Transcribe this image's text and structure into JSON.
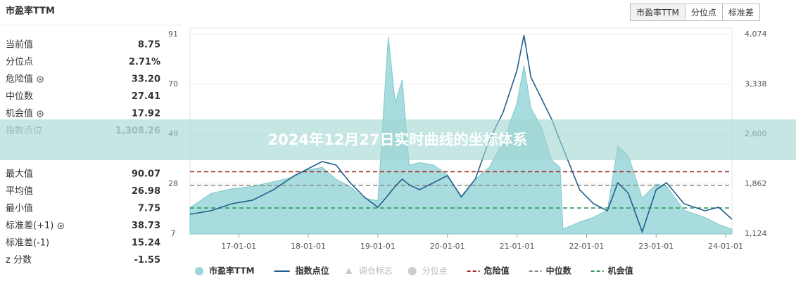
{
  "panel_title": "市盈率TTM",
  "tabs": [
    {
      "label": "市盈率TTM",
      "active": true
    },
    {
      "label": "分位点",
      "active": false
    },
    {
      "label": "标准差",
      "active": false
    }
  ],
  "stats": [
    [
      {
        "label": "当前值",
        "value": "8.75",
        "gear": false
      },
      {
        "label": "分位点",
        "value": "2.71%",
        "gear": false
      },
      {
        "label": "危险值",
        "value": "33.20",
        "gear": true
      },
      {
        "label": "中位数",
        "value": "27.41",
        "gear": false
      },
      {
        "label": "机会值",
        "value": "17.92",
        "gear": true
      },
      {
        "label": "指数点位",
        "value": "1,308.26",
        "gear": false
      }
    ],
    [
      {
        "label": "最大值",
        "value": "90.07",
        "gear": false
      },
      {
        "label": "平均值",
        "value": "26.98",
        "gear": false
      },
      {
        "label": "最小值",
        "value": "7.75",
        "gear": false
      },
      {
        "label": "标准差(+1)",
        "value": "38.73",
        "gear": true
      },
      {
        "label": "标准差(-1)",
        "value": "15.24",
        "gear": false
      },
      {
        "label": "z 分数",
        "value": "-1.55",
        "gear": false
      }
    ]
  ],
  "banner": "2024年12月27日实时曲线的坐标体系",
  "chart_data": {
    "type": "area-line",
    "x": [
      2016.3,
      2016.6,
      2016.9,
      2017.2,
      2017.5,
      2017.8,
      2018.0,
      2018.2,
      2018.4,
      2018.6,
      2018.8,
      2019.0,
      2019.15,
      2019.25,
      2019.35,
      2019.45,
      2019.6,
      2019.8,
      2020.0,
      2020.2,
      2020.4,
      2020.6,
      2020.8,
      2021.0,
      2021.1,
      2021.2,
      2021.35,
      2021.5,
      2021.62,
      2021.66,
      2021.9,
      2022.1,
      2022.3,
      2022.45,
      2022.6,
      2022.8,
      2023.0,
      2023.15,
      2023.4,
      2023.7,
      2023.9,
      2024.09
    ],
    "series": [
      {
        "name": "市盈率TTM",
        "color": "#9ad6d8",
        "values": [
          18,
          24,
          26,
          27,
          29,
          31,
          34,
          35,
          30,
          27,
          22,
          21,
          90,
          62,
          72,
          36,
          37,
          36,
          32,
          22,
          30,
          35,
          46,
          62,
          78,
          60,
          52,
          38,
          35,
          9,
          12,
          14,
          17,
          44,
          40,
          22,
          28,
          27,
          17,
          14,
          11,
          9
        ]
      },
      {
        "name": "指数点位",
        "color": "#215f8e",
        "axis": "y2",
        "values": [
          1415,
          1467,
          1571,
          1623,
          1778,
          1986,
          2090,
          2194,
          2142,
          1882,
          1675,
          1519,
          1700,
          1830,
          1934,
          1850,
          1778,
          1882,
          1986,
          1675,
          1934,
          2505,
          2921,
          3544,
          4063,
          3440,
          3129,
          2817,
          2500,
          2400,
          1778,
          1571,
          1467,
          1882,
          1726,
          1155,
          1778,
          1882,
          1571,
          1467,
          1519,
          1342
        ]
      }
    ],
    "inactive_legend": [
      {
        "name": "调仓标志",
        "symbol": "triangle"
      },
      {
        "name": "分位点",
        "symbol": "circle"
      }
    ],
    "reference_lines": [
      {
        "name": "危险值",
        "value": 33.2,
        "color": "#a52a2a"
      },
      {
        "name": "中位数",
        "value": 27.41,
        "color": "#8a8a8a"
      },
      {
        "name": "机会值",
        "value": 17.92,
        "color": "#2e9b5e"
      }
    ],
    "xlim": [
      2016.3,
      2024.09
    ],
    "xticks": [
      {
        "value": 2017,
        "label": "17-01-01"
      },
      {
        "value": 2018,
        "label": "18-01-01"
      },
      {
        "value": 2019,
        "label": "19-01-01"
      },
      {
        "value": 2020,
        "label": "20-01-01"
      },
      {
        "value": 2021,
        "label": "21-01-01"
      },
      {
        "value": 2022,
        "label": "22-01-01"
      },
      {
        "value": 2023,
        "label": "23-01-01"
      },
      {
        "value": 2024,
        "label": "24-01-01"
      }
    ],
    "ylim": [
      7,
      91
    ],
    "yticks": [
      7,
      28,
      49,
      70,
      91
    ],
    "y2lim": [
      1124,
      4074
    ],
    "y2ticks": [
      {
        "value": 1124,
        "label": "1,124"
      },
      {
        "value": 1862,
        "label": "1,862"
      },
      {
        "value": 2600,
        "label": "2,600"
      },
      {
        "value": 3338,
        "label": "3,338"
      },
      {
        "value": 4074,
        "label": "4,074"
      }
    ],
    "grid": true
  }
}
